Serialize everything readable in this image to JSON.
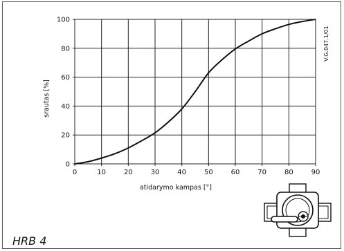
{
  "model_label": "HRB 4",
  "reference_code": "V.G.047.1/01",
  "icons": {
    "valve": "rotary-mixing-valve-icon"
  },
  "colors": {
    "curve": "#111111",
    "grid": "#222222",
    "background": "#ffffff"
  },
  "chart_data": {
    "type": "line",
    "title": "",
    "xlabel": "atidarymo kampas  [°]",
    "ylabel": "srautas  [%]",
    "xlim": [
      0,
      90
    ],
    "ylim": [
      0,
      100
    ],
    "xticks": [
      0,
      10,
      20,
      30,
      40,
      50,
      60,
      70,
      80,
      90
    ],
    "yticks": [
      0,
      20,
      40,
      60,
      80,
      100
    ],
    "grid": true,
    "series": [
      {
        "x": [
          0,
          5,
          10,
          15,
          20,
          25,
          30,
          35,
          40,
          45,
          50,
          55,
          60,
          65,
          70,
          75,
          80,
          85,
          90
        ],
        "y": [
          0,
          1.5,
          4,
          7,
          11,
          16,
          21.5,
          29,
          38,
          50,
          63,
          72,
          79.5,
          85,
          90,
          93.5,
          96.5,
          98.5,
          100
        ]
      }
    ]
  }
}
